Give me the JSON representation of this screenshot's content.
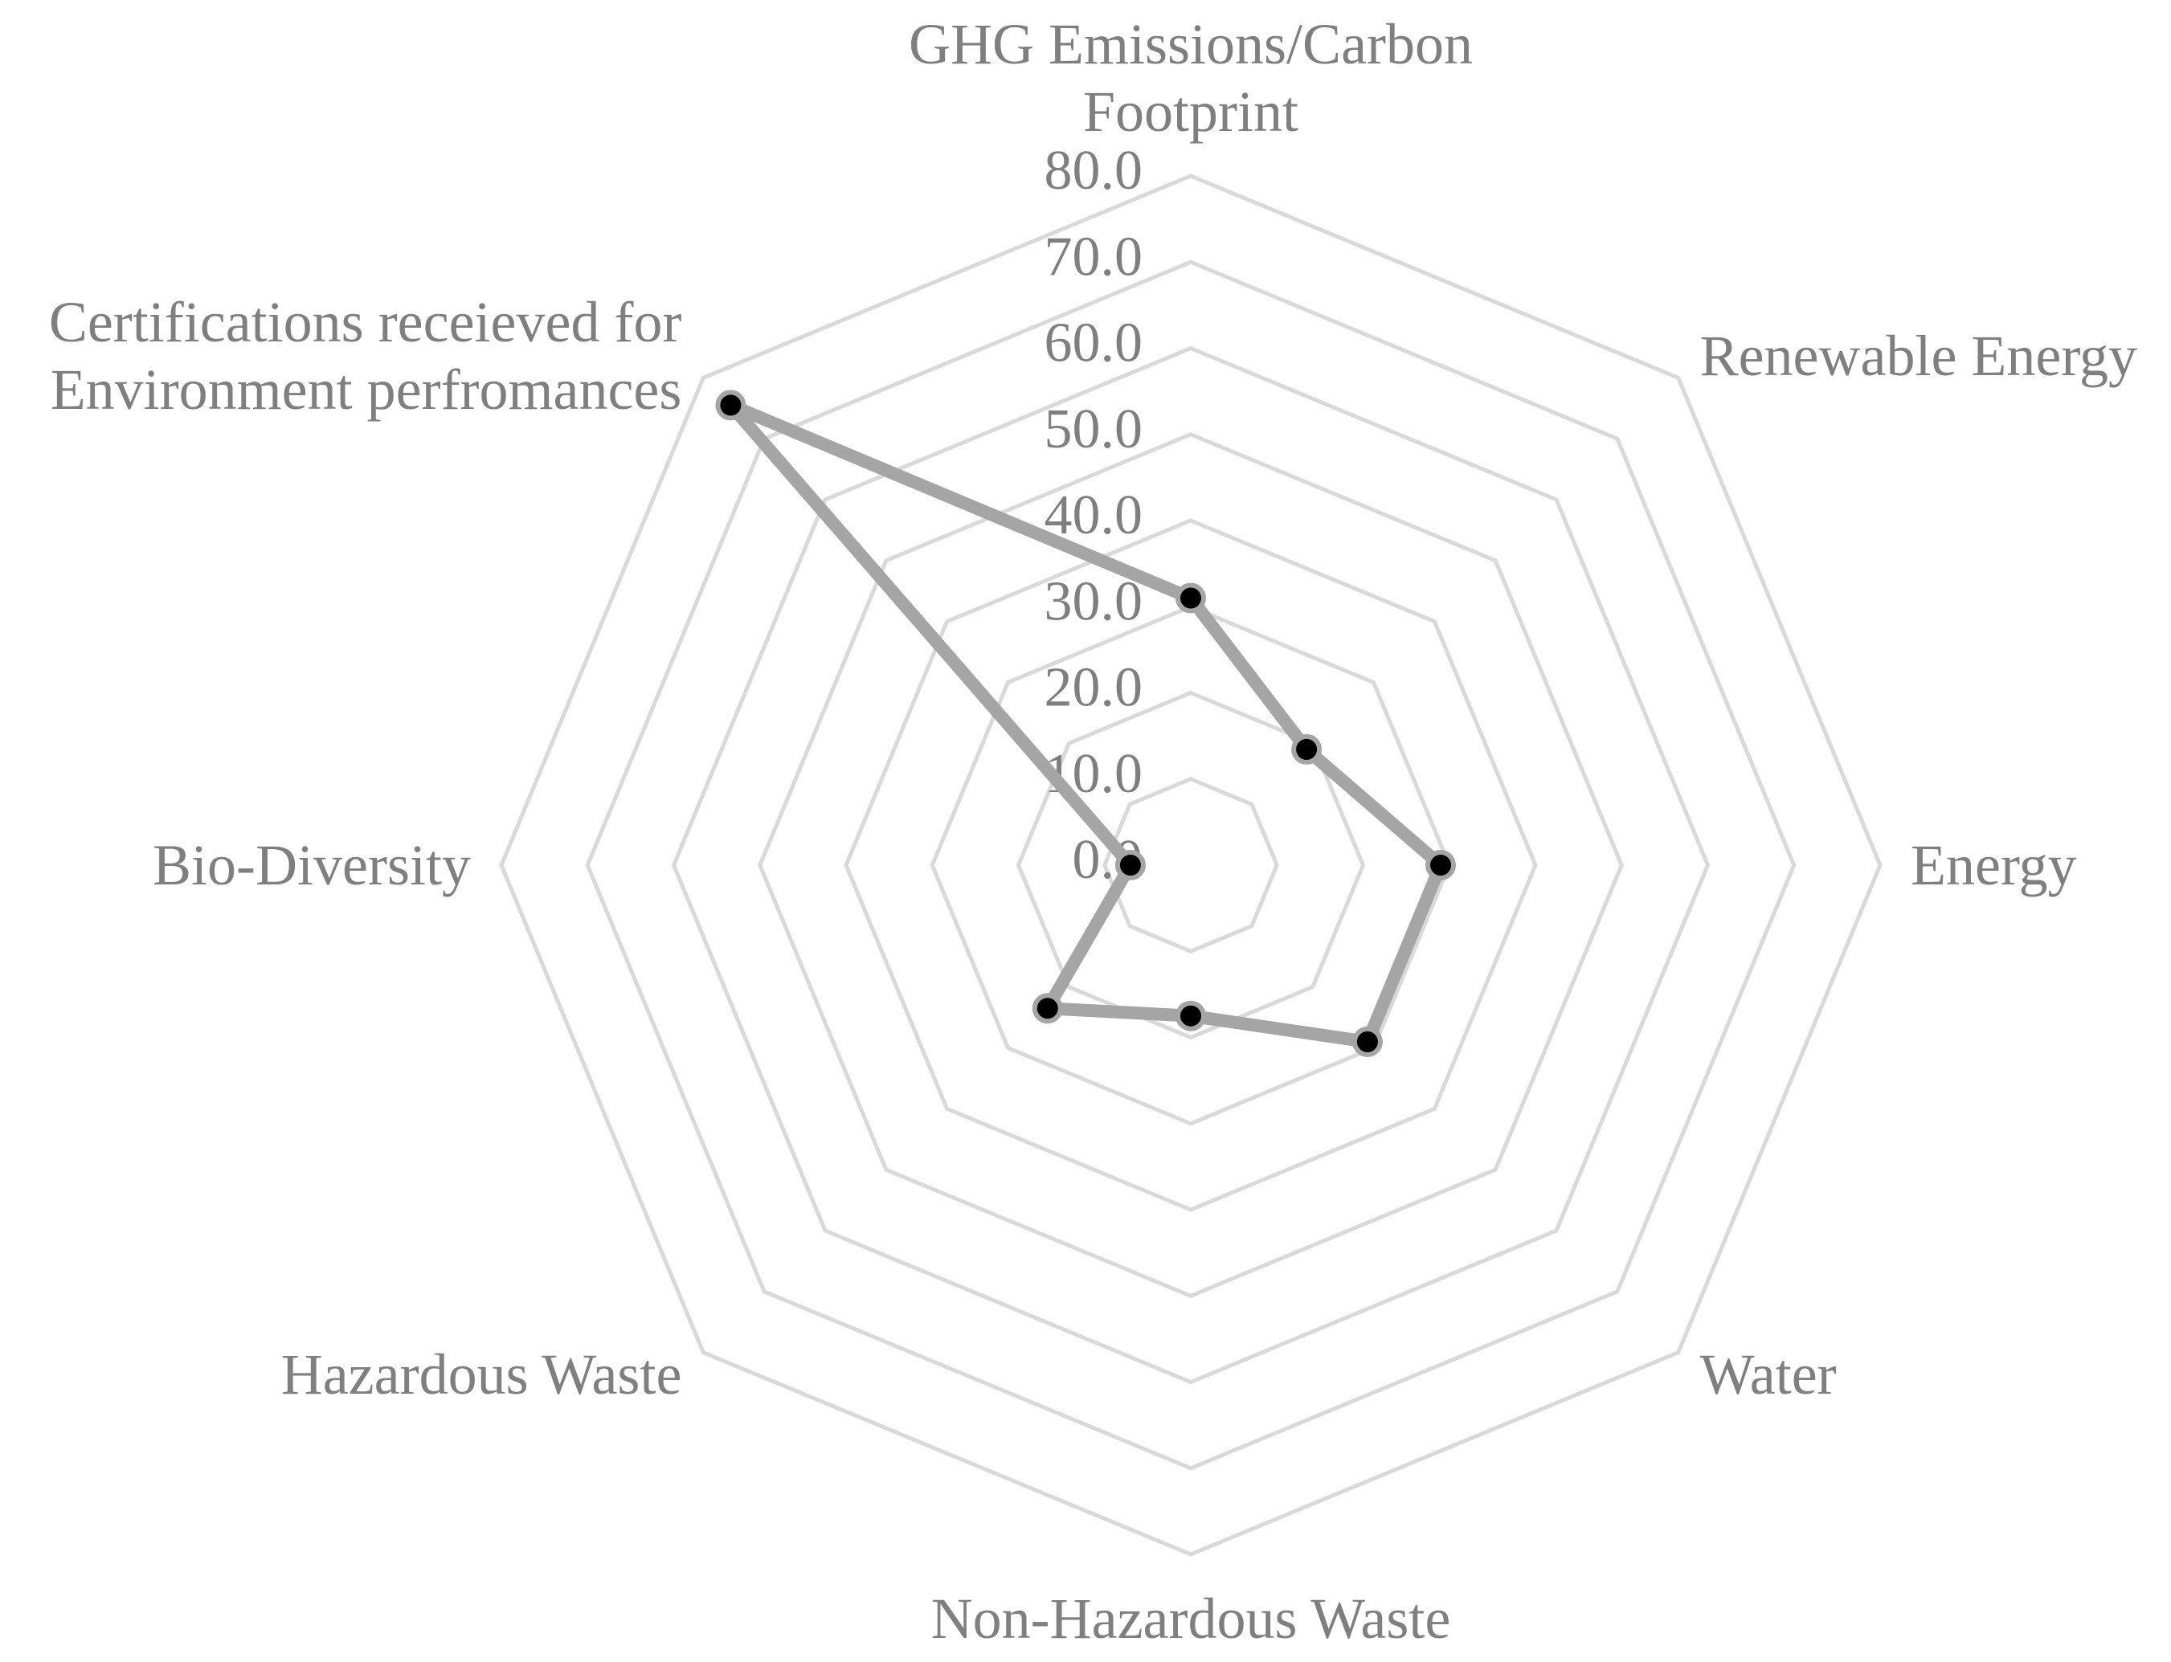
{
  "chart_data": {
    "type": "radar",
    "categories": [
      "GHG Emissions/Carbon Footprint",
      "Renewable Energy",
      "Energy",
      "Water",
      "Non-Hazardous Waste",
      "Hazardous Waste",
      "Bio-Diversity",
      "Certifications receieved for Environment perfromances"
    ],
    "values": [
      31.0,
      19.0,
      29.0,
      29.0,
      17.5,
      23.5,
      7.0,
      75.5
    ],
    "color": "#a5a5a5",
    "marker_color": "#000000",
    "ylim": [
      0,
      80
    ],
    "yticks": [
      {
        "value": 0,
        "label": "0.0"
      },
      {
        "value": 10,
        "label": "10.0"
      },
      {
        "value": 20,
        "label": "20.0"
      },
      {
        "value": 30,
        "label": "30.0"
      },
      {
        "value": 40,
        "label": "40.0"
      },
      {
        "value": 50,
        "label": "50.0"
      },
      {
        "value": 60,
        "label": "60.0"
      },
      {
        "value": 70,
        "label": "70.0"
      },
      {
        "value": 80,
        "label": "80.0"
      }
    ],
    "grid": true
  }
}
